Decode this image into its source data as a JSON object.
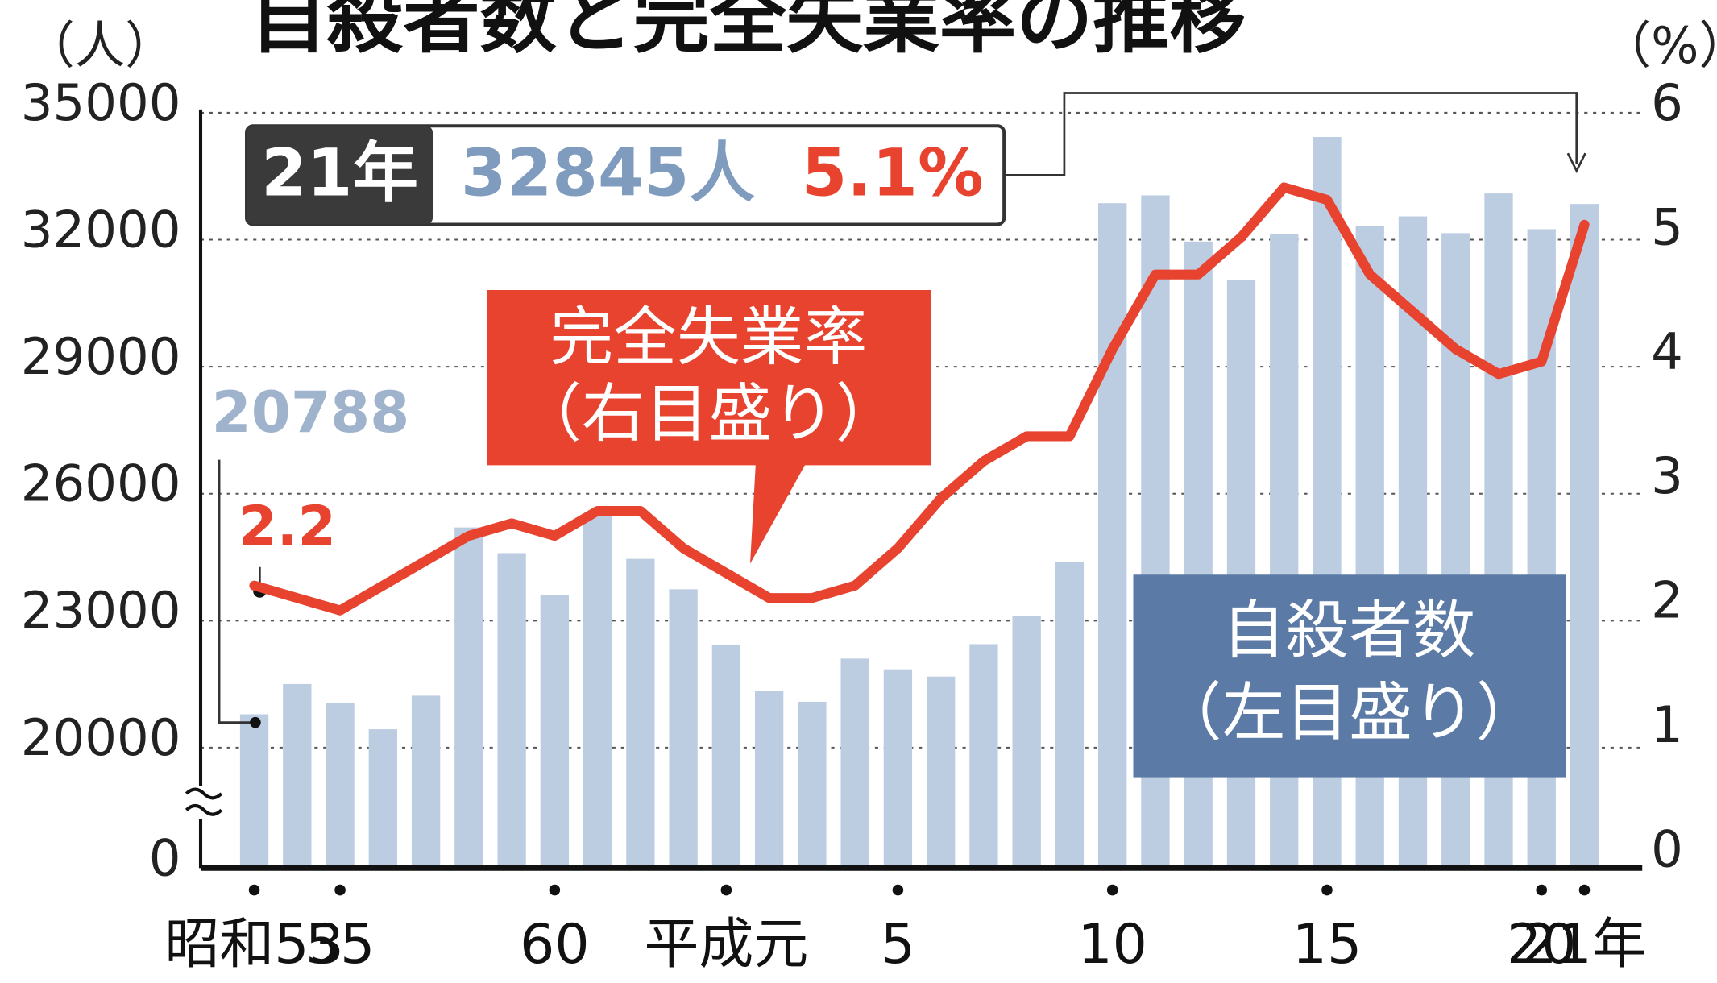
{
  "chart_data": {
    "type": "bar_line",
    "title": "自殺者数と完全失業率の推移",
    "y_unit": "（人）",
    "y2_unit": "（%）",
    "categories": [
      "昭和53",
      null,
      "55",
      null,
      null,
      null,
      null,
      "60",
      null,
      null,
      null,
      "平成元",
      null,
      null,
      null,
      "5",
      null,
      null,
      null,
      null,
      "10",
      null,
      null,
      null,
      null,
      "15",
      null,
      null,
      null,
      null,
      "20",
      "21年"
    ],
    "series": [
      {
        "name": "自殺者数",
        "note": "（左目盛り）",
        "type": "bar",
        "color": "#bccde2",
        "values": [
          20788,
          21503,
          21048,
          20434,
          21228,
          25202,
          24596,
          23599,
          25524,
          24460,
          23742,
          22436,
          21346,
          21084,
          22104,
          21851,
          21679,
          22445,
          23104,
          24391,
          32863,
          33048,
          31957,
          31042,
          32143,
          34427,
          32325,
          32552,
          32155,
          33093,
          32249,
          32845
        ],
        "value_labels": [
          "20788",
          null,
          null,
          null,
          null,
          null,
          null,
          null,
          null,
          null,
          null,
          null,
          null,
          null,
          null,
          null,
          null,
          null,
          null,
          null,
          null,
          null,
          null,
          null,
          null,
          null,
          null,
          null,
          null,
          null,
          null,
          "32845人"
        ]
      },
      {
        "name": "完全失業率",
        "note": "（右目盛り）",
        "type": "line",
        "axis": "y2",
        "color": "#e8432f",
        "values": [
          2.2,
          2.1,
          2.0,
          2.2,
          2.4,
          2.6,
          2.7,
          2.6,
          2.8,
          2.8,
          2.5,
          2.3,
          2.1,
          2.1,
          2.2,
          2.5,
          2.9,
          3.2,
          3.4,
          3.4,
          4.1,
          4.7,
          4.7,
          5.0,
          5.4,
          5.3,
          4.7,
          4.4,
          4.1,
          3.9,
          4.0,
          5.1
        ],
        "value_labels": [
          "2.2",
          null,
          null,
          null,
          null,
          null,
          null,
          null,
          null,
          null,
          null,
          null,
          null,
          null,
          null,
          null,
          null,
          null,
          null,
          null,
          null,
          null,
          null,
          null,
          null,
          null,
          null,
          null,
          null,
          null,
          null,
          "5.1%"
        ]
      }
    ],
    "highlight_label": "21年",
    "ylim": [
      17155,
      35000
    ],
    "axis_break": true,
    "yticks": [
      0,
      20000,
      23000,
      26000,
      29000,
      32000,
      35000
    ],
    "y2lim": [
      0,
      6
    ],
    "y2ticks": [
      0,
      1,
      2,
      3,
      4,
      5,
      6
    ],
    "grid": true
  }
}
